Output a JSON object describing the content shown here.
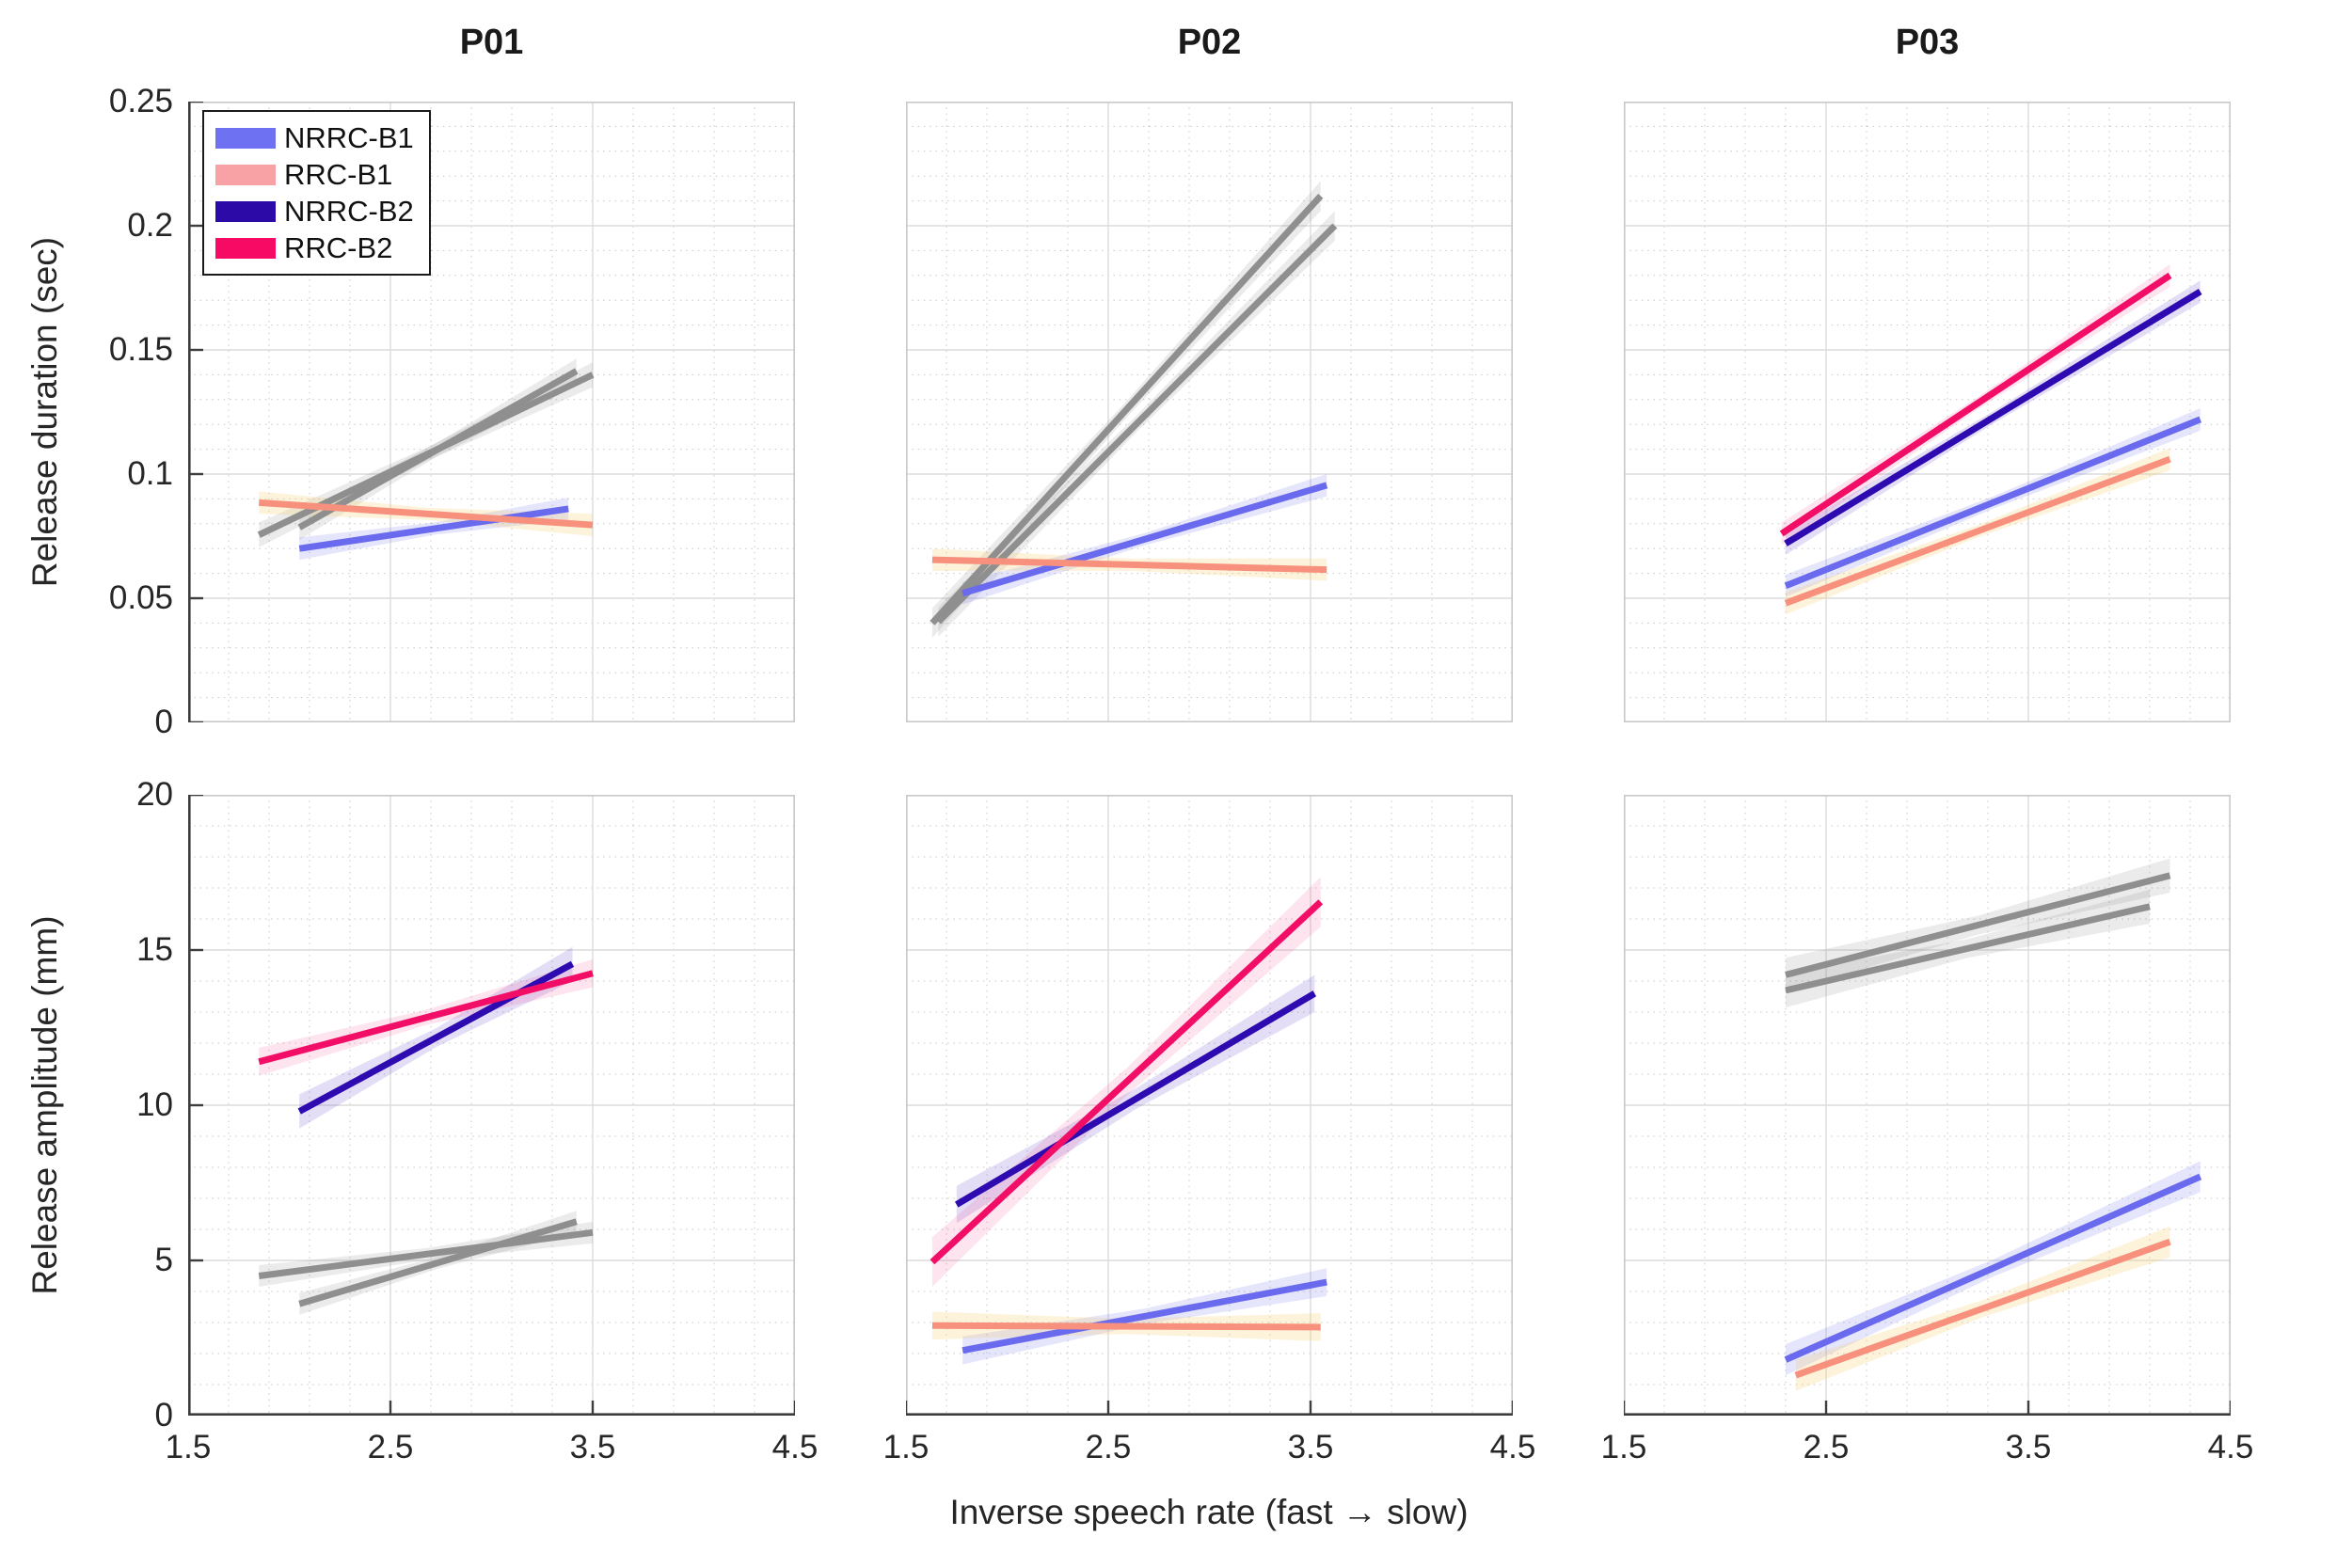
{
  "figure_title": "",
  "titles": [
    "P01",
    "P02",
    "P03"
  ],
  "xlabel": "Inverse speech rate (fast → slow)",
  "legend": {
    "items": [
      {
        "label": "NRRC-B1",
        "series": "NRRC-B1"
      },
      {
        "label": "RRC-B1",
        "series": "RRC-B1"
      },
      {
        "label": "NRRC-B2",
        "series": "NRRC-B2"
      },
      {
        "label": "RRC-B2",
        "series": "RRC-B2"
      }
    ]
  },
  "series_styles": {
    "NRRC-B1": {
      "line": "#6A6AEE",
      "band": "rgba(110,110,240,0.18)",
      "legend": "#6E72F2"
    },
    "RRC-B1": {
      "line": "#F7917D",
      "band": "rgba(248,210,115,0.26)",
      "legend": "#F9A2A6"
    },
    "NRRC-B2": {
      "line": "#2E0BB0",
      "band": "rgba(60,20,190,0.14)",
      "legend": "#2B0AA8"
    },
    "RRC-B2": {
      "line": "#F20D66",
      "band": "rgba(243,12,104,0.11)",
      "legend": "#F70A64"
    },
    "gray": {
      "line": "#8F8F8F",
      "band": "rgba(130,130,130,0.16)",
      "legend": "#8F8F8F"
    }
  },
  "grid": {
    "major_color": "#dcdcdc",
    "minor_color": "#9a9a9a",
    "box_color": "#c8c8c8",
    "spine_color": "#3d3d3d"
  },
  "chart_data": {
    "type": "line",
    "x_axis": {
      "label": "Inverse speech rate (fast → slow)",
      "min": 1.5,
      "max": 4.5,
      "minor_step": 0.2,
      "ticks": [
        {
          "v": 1.5,
          "label": "1.5"
        },
        {
          "v": 2.5,
          "label": "2.5"
        },
        {
          "v": 3.5,
          "label": "3.5"
        },
        {
          "v": 4.5,
          "label": "4.5"
        }
      ]
    },
    "rows": [
      {
        "ylabel": "Release duration (sec)",
        "min": 0,
        "max": 0.25,
        "minor_step": 0.01,
        "ticks": [
          {
            "v": 0,
            "label": "0"
          },
          {
            "v": 0.05,
            "label": "0.05"
          },
          {
            "v": 0.1,
            "label": "0.1"
          },
          {
            "v": 0.15,
            "label": "0.15"
          },
          {
            "v": 0.2,
            "label": "0.2"
          },
          {
            "v": 0.25,
            "label": "0.25"
          }
        ]
      },
      {
        "ylabel": "Release amplitude (mm)",
        "min": 0,
        "max": 20,
        "minor_step": 1,
        "ticks": [
          {
            "v": 0,
            "label": "0"
          },
          {
            "v": 5,
            "label": "5"
          },
          {
            "v": 10,
            "label": "10"
          },
          {
            "v": 15,
            "label": "15"
          },
          {
            "v": 20,
            "label": "20"
          }
        ]
      }
    ],
    "panels": [
      {
        "participant": "P01",
        "measure": "Release duration (sec)",
        "row": 0,
        "col": 0,
        "lines": [
          {
            "series": "gray",
            "x": [
              1.85,
              3.5
            ],
            "y": [
              0.0755,
              0.14
            ],
            "band": 0.005
          },
          {
            "series": "gray",
            "x": [
              2.05,
              3.42
            ],
            "y": [
              0.0785,
              0.1415
            ],
            "band": 0.005
          },
          {
            "series": "NRRC-B1",
            "x": [
              2.05,
              3.38
            ],
            "y": [
              0.07,
              0.086
            ],
            "band": 0.0045
          },
          {
            "series": "RRC-B1",
            "x": [
              1.85,
              3.5
            ],
            "y": [
              0.0885,
              0.0795
            ],
            "band": 0.0045
          }
        ]
      },
      {
        "participant": "P02",
        "measure": "Release duration (sec)",
        "row": 0,
        "col": 1,
        "lines": [
          {
            "series": "gray",
            "x": [
              1.63,
              3.55
            ],
            "y": [
              0.04,
              0.212
            ],
            "band": 0.006
          },
          {
            "series": "gray",
            "x": [
              1.66,
              3.62
            ],
            "y": [
              0.0405,
              0.2
            ],
            "band": 0.006
          },
          {
            "series": "NRRC-B1",
            "x": [
              1.78,
              3.58
            ],
            "y": [
              0.052,
              0.0955
            ],
            "band": 0.0045
          },
          {
            "series": "RRC-B1",
            "x": [
              1.63,
              3.58
            ],
            "y": [
              0.0655,
              0.0615
            ],
            "band": 0.0045
          }
        ]
      },
      {
        "participant": "P03",
        "measure": "Release duration (sec)",
        "row": 0,
        "col": 2,
        "lines": [
          {
            "series": "NRRC-B1",
            "x": [
              2.3,
              4.35
            ],
            "y": [
              0.055,
              0.122
            ],
            "band": 0.0045
          },
          {
            "series": "RRC-B1",
            "x": [
              2.3,
              4.2
            ],
            "y": [
              0.048,
              0.106
            ],
            "band": 0.0045
          },
          {
            "series": "NRRC-B2",
            "x": [
              2.3,
              4.35
            ],
            "y": [
              0.072,
              0.1735
            ],
            "band": 0.0045
          },
          {
            "series": "RRC-B2",
            "x": [
              2.28,
              4.2
            ],
            "y": [
              0.076,
              0.18
            ],
            "band": 0.0045
          }
        ]
      },
      {
        "participant": "P01",
        "measure": "Release amplitude (mm)",
        "row": 1,
        "col": 0,
        "lines": [
          {
            "series": "gray",
            "x": [
              1.85,
              3.5
            ],
            "y": [
              4.5,
              5.9
            ],
            "band": 0.35
          },
          {
            "series": "gray",
            "x": [
              2.05,
              3.42
            ],
            "y": [
              3.6,
              6.25
            ],
            "band": 0.35
          },
          {
            "series": "NRRC-B2",
            "x": [
              2.05,
              3.4
            ],
            "y": [
              9.8,
              14.55
            ],
            "band": 0.55
          },
          {
            "series": "RRC-B2",
            "x": [
              1.85,
              3.5
            ],
            "y": [
              11.4,
              14.25
            ],
            "band": 0.45
          }
        ]
      },
      {
        "participant": "P02",
        "measure": "Release amplitude (mm)",
        "row": 1,
        "col": 1,
        "lines": [
          {
            "series": "NRRC-B1",
            "x": [
              1.78,
              3.58
            ],
            "y": [
              2.1,
              4.3
            ],
            "band": 0.45
          },
          {
            "series": "RRC-B1",
            "x": [
              1.63,
              3.55
            ],
            "y": [
              2.9,
              2.85
            ],
            "band": 0.45
          },
          {
            "series": "NRRC-B2",
            "x": [
              1.75,
              3.52
            ],
            "y": [
              6.8,
              13.6
            ],
            "band": 0.6
          },
          {
            "series": "RRC-B2",
            "x": [
              1.63,
              3.55
            ],
            "y": [
              4.95,
              16.55
            ],
            "band": 0.8
          }
        ]
      },
      {
        "participant": "P03",
        "measure": "Release amplitude (mm)",
        "row": 1,
        "col": 2,
        "lines": [
          {
            "series": "gray",
            "x": [
              2.3,
              4.2
            ],
            "y": [
              14.2,
              17.4
            ],
            "band": 0.55
          },
          {
            "series": "gray",
            "x": [
              2.3,
              4.1
            ],
            "y": [
              13.7,
              16.4
            ],
            "band": 0.55
          },
          {
            "series": "NRRC-B1",
            "x": [
              2.3,
              4.35
            ],
            "y": [
              1.8,
              7.7
            ],
            "band": 0.5
          },
          {
            "series": "RRC-B1",
            "x": [
              2.35,
              4.2
            ],
            "y": [
              1.3,
              5.6
            ],
            "band": 0.5
          }
        ]
      }
    ]
  }
}
